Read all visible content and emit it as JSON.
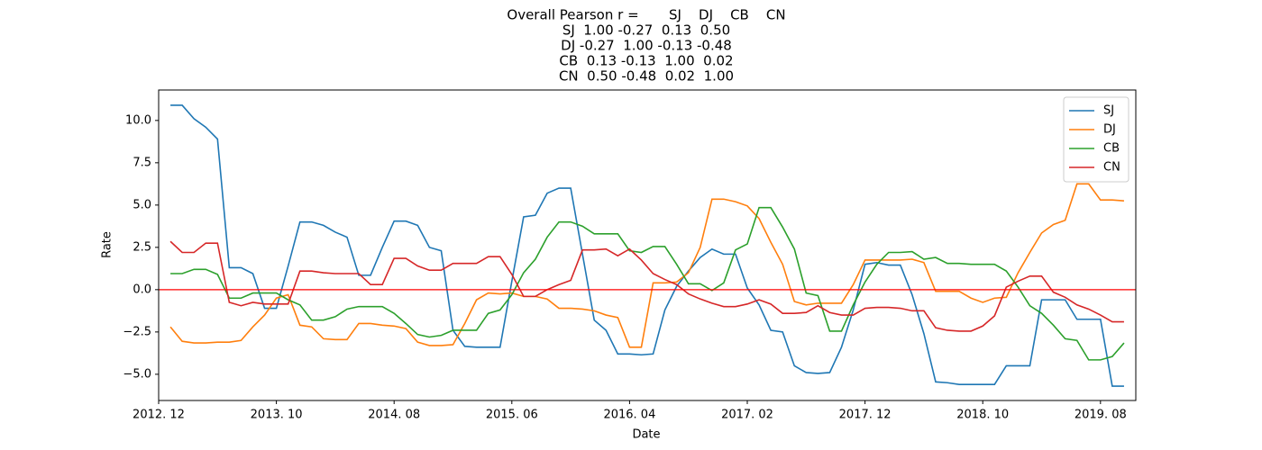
{
  "chart_data": {
    "type": "line",
    "title": [
      "Overall Pearson r =       SJ    DJ    CB    CN",
      "SJ  1.00 -0.27  0.13  0.50",
      "DJ -0.27  1.00 -0.13 -0.48",
      "CB  0.13 -0.13  1.00  0.02",
      "CN  0.50 -0.48  0.02  1.00"
    ],
    "xlabel": "Date",
    "ylabel": "Rate",
    "x": [
      "2013-01",
      "2013-02",
      "2013-03",
      "2013-04",
      "2013-05",
      "2013-06",
      "2013-07",
      "2013-08",
      "2013-09",
      "2013-10",
      "2013-11",
      "2013-12",
      "2014-01",
      "2014-02",
      "2014-03",
      "2014-04",
      "2014-05",
      "2014-06",
      "2014-07",
      "2014-08",
      "2014-09",
      "2014-10",
      "2014-11",
      "2014-12",
      "2015-01",
      "2015-02",
      "2015-03",
      "2015-04",
      "2015-05",
      "2015-06",
      "2015-07",
      "2015-08",
      "2015-09",
      "2015-10",
      "2015-11",
      "2015-12",
      "2016-01",
      "2016-02",
      "2016-03",
      "2016-04",
      "2016-05",
      "2016-06",
      "2016-07",
      "2016-08",
      "2016-09",
      "2016-10",
      "2016-11",
      "2016-12",
      "2017-01",
      "2017-02",
      "2017-03",
      "2017-04",
      "2017-05",
      "2017-06",
      "2017-07",
      "2017-08",
      "2017-09",
      "2017-10",
      "2017-11",
      "2017-12",
      "2018-01",
      "2018-02",
      "2018-03",
      "2018-04",
      "2018-05",
      "2018-06",
      "2018-07",
      "2018-08",
      "2018-09",
      "2018-10",
      "2018-11",
      "2018-12",
      "2019-01",
      "2019-02",
      "2019-03",
      "2019-04",
      "2019-05",
      "2019-06",
      "2019-07",
      "2019-08",
      "2019-09",
      "2019-10"
    ],
    "series": [
      {
        "name": "SJ",
        "color": "#1f77b4",
        "values": [
          10.9,
          10.9,
          10.1,
          9.6,
          8.9,
          1.3,
          1.3,
          0.95,
          -1.1,
          -1.1,
          1.4,
          4.0,
          4.0,
          3.8,
          3.4,
          3.1,
          0.85,
          0.85,
          2.5,
          4.05,
          4.05,
          3.8,
          2.5,
          2.3,
          -2.4,
          -3.35,
          -3.4,
          -3.4,
          -3.4,
          0.5,
          4.3,
          4.4,
          5.7,
          6.0,
          6.0,
          2.1,
          -1.8,
          -2.4,
          -3.8,
          -3.8,
          -3.85,
          -3.8,
          -1.2,
          0.2,
          1.1,
          1.9,
          2.4,
          2.1,
          2.1,
          0.1,
          -0.9,
          -2.4,
          -2.5,
          -4.5,
          -4.9,
          -4.95,
          -4.9,
          -3.4,
          -1.2,
          1.5,
          1.6,
          1.45,
          1.45,
          -0.3,
          -2.6,
          -5.45,
          -5.5,
          -5.6,
          -5.6,
          -5.6,
          -5.6,
          -4.5,
          -4.5,
          -4.5,
          -0.6,
          -0.6,
          -0.6,
          -1.75,
          -1.75,
          -1.75,
          -5.7,
          -5.7
        ]
      },
      {
        "name": "DJ",
        "color": "#ff7f0e",
        "values": [
          -2.2,
          -3.05,
          -3.15,
          -3.15,
          -3.1,
          -3.1,
          -3.0,
          -2.2,
          -1.5,
          -0.5,
          -0.3,
          -2.1,
          -2.2,
          -2.9,
          -2.95,
          -2.95,
          -2.0,
          -2.0,
          -2.1,
          -2.15,
          -2.3,
          -3.1,
          -3.3,
          -3.3,
          -3.25,
          -2.0,
          -0.6,
          -0.2,
          -0.25,
          -0.2,
          -0.4,
          -0.4,
          -0.55,
          -1.1,
          -1.1,
          -1.15,
          -1.25,
          -1.5,
          -1.65,
          -3.4,
          -3.4,
          0.4,
          0.4,
          0.45,
          1.0,
          2.5,
          5.35,
          5.35,
          5.2,
          4.95,
          4.2,
          2.8,
          1.5,
          -0.7,
          -0.9,
          -0.8,
          -0.8,
          -0.8,
          0.3,
          1.75,
          1.75,
          1.75,
          1.75,
          1.8,
          1.6,
          -0.1,
          -0.1,
          -0.1,
          -0.5,
          -0.75,
          -0.5,
          -0.45,
          1.0,
          2.2,
          3.35,
          3.85,
          4.1,
          6.25,
          6.25,
          5.3,
          5.3,
          5.25
        ]
      },
      {
        "name": "CB",
        "color": "#2ca02c",
        "values": [
          0.95,
          0.95,
          1.2,
          1.2,
          0.9,
          -0.5,
          -0.5,
          -0.2,
          -0.2,
          -0.2,
          -0.6,
          -0.9,
          -1.8,
          -1.8,
          -1.6,
          -1.15,
          -1.0,
          -1.0,
          -1.0,
          -1.4,
          -2.0,
          -2.65,
          -2.8,
          -2.7,
          -2.4,
          -2.4,
          -2.4,
          -1.4,
          -1.2,
          -0.3,
          1.0,
          1.8,
          3.1,
          4.0,
          4.0,
          3.75,
          3.3,
          3.3,
          3.3,
          2.3,
          2.2,
          2.55,
          2.55,
          1.5,
          0.35,
          0.35,
          -0.05,
          0.4,
          2.35,
          2.7,
          4.85,
          4.85,
          3.7,
          2.4,
          -0.2,
          -0.35,
          -2.45,
          -2.45,
          -0.9,
          0.45,
          1.5,
          2.2,
          2.2,
          2.25,
          1.8,
          1.9,
          1.55,
          1.55,
          1.5,
          1.5,
          1.5,
          1.1,
          0.15,
          -0.95,
          -1.4,
          -2.1,
          -2.9,
          -3.0,
          -4.15,
          -4.15,
          -3.95,
          -3.15
        ]
      },
      {
        "name": "CN",
        "color": "#d62728",
        "values": [
          2.85,
          2.2,
          2.2,
          2.75,
          2.75,
          -0.75,
          -0.95,
          -0.75,
          -0.85,
          -0.85,
          -0.85,
          1.1,
          1.1,
          1.0,
          0.95,
          0.95,
          0.95,
          0.3,
          0.3,
          1.85,
          1.85,
          1.4,
          1.15,
          1.15,
          1.55,
          1.55,
          1.55,
          1.95,
          1.95,
          0.9,
          -0.4,
          -0.4,
          0.0,
          0.3,
          0.55,
          2.35,
          2.35,
          2.4,
          2.0,
          2.4,
          1.75,
          0.95,
          0.6,
          0.3,
          -0.25,
          -0.55,
          -0.8,
          -1.0,
          -1.0,
          -0.85,
          -0.6,
          -0.85,
          -1.4,
          -1.4,
          -1.35,
          -0.95,
          -1.35,
          -1.5,
          -1.5,
          -1.1,
          -1.05,
          -1.05,
          -1.1,
          -1.25,
          -1.25,
          -2.25,
          -2.4,
          -2.45,
          -2.45,
          -2.15,
          -1.55,
          0.15,
          0.5,
          0.8,
          0.8,
          -0.15,
          -0.45,
          -0.9,
          -1.15,
          -1.5,
          -1.9,
          -1.9
        ]
      }
    ],
    "hline": {
      "value": 0,
      "color": "red"
    },
    "xlim": [
      "2012-12",
      "2019-11"
    ],
    "xticks": [
      {
        "value": "2012-12",
        "label": "2012. 12"
      },
      {
        "value": "2013-10",
        "label": "2013. 10"
      },
      {
        "value": "2014-08",
        "label": "2014. 08"
      },
      {
        "value": "2015-06",
        "label": "2015. 06"
      },
      {
        "value": "2016-04",
        "label": "2016. 04"
      },
      {
        "value": "2017-02",
        "label": "2017. 02"
      },
      {
        "value": "2017-12",
        "label": "2017. 12"
      },
      {
        "value": "2018-10",
        "label": "2018. 10"
      },
      {
        "value": "2019-08",
        "label": "2019. 08"
      }
    ],
    "ylim": [
      -6.55,
      11.8
    ],
    "yticks": [
      {
        "value": -5,
        "label": "−5.0"
      },
      {
        "value": -2.5,
        "label": "−2.5"
      },
      {
        "value": 0,
        "label": "0.0"
      },
      {
        "value": 2.5,
        "label": "2.5"
      },
      {
        "value": 5,
        "label": "5.0"
      },
      {
        "value": 7.5,
        "label": "7.5"
      },
      {
        "value": 10,
        "label": "10.0"
      }
    ],
    "legend": "upper right"
  }
}
